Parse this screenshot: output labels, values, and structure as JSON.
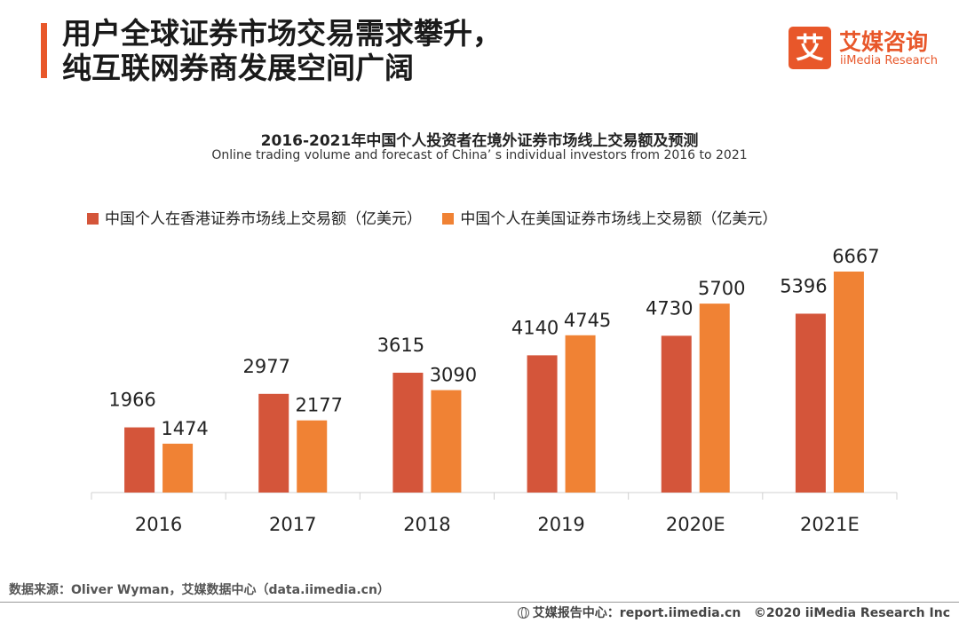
{
  "header": {
    "headline_line1": "用户全球证券市场交易需求攀升，",
    "headline_line2": "纯互联网券商发展空间广阔"
  },
  "brand": {
    "mark": "艾",
    "name_cn": "艾媒咨询",
    "name_en": "iiMedia Research",
    "color": "#e8572a"
  },
  "chart_data": {
    "type": "bar",
    "title": "2016-2021年中国个人投资者在境外证券市场线上交易额及预测",
    "subtitle": "Online trading volume and forecast of  China’  s individual investors from 2016 to 2021",
    "categories": [
      "2016",
      "2017",
      "2018",
      "2019",
      "2020E",
      "2021E"
    ],
    "series": [
      {
        "name": "中国个人在香港证券市场线上交易额（亿美元）",
        "color": "#d4553a",
        "values": [
          1966,
          2977,
          3615,
          4140,
          4730,
          5396
        ]
      },
      {
        "name": "中国个人在美国证券市场线上交易额（亿美元）",
        "color": "#f08234",
        "values": [
          1474,
          2177,
          3090,
          4745,
          5700,
          6667
        ]
      }
    ],
    "ylim": [
      0,
      6667
    ],
    "grid": false,
    "legend_position": "top-left",
    "xlabel": "",
    "ylabel": ""
  },
  "footer": {
    "source": "数据来源：Oliver Wyman，艾媒数据中心（data.iimedia.cn）",
    "center": "艾媒报告中心：report.iimedia.cn",
    "copyright": "©2020  iiMedia Research  Inc"
  }
}
